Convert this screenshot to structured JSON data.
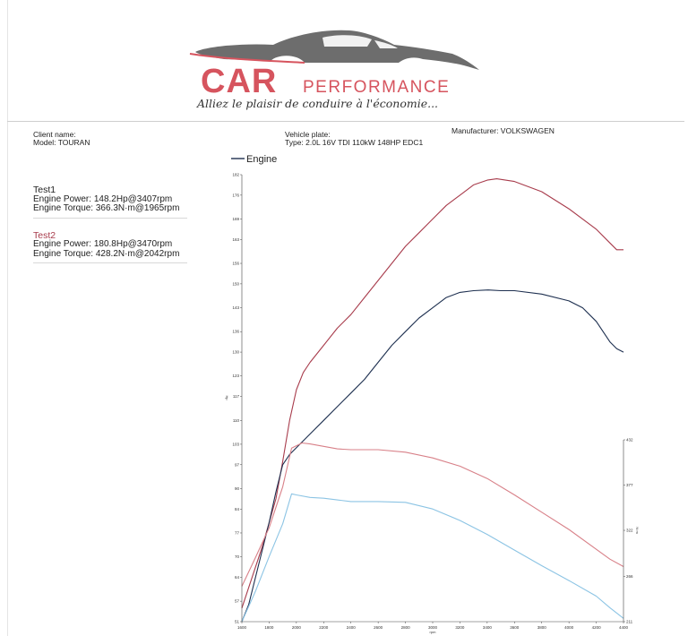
{
  "logo": {
    "brand": "CAR",
    "brand_sub": "PERFORMANCE",
    "slogan": "Alliez le plaisir de conduire à l'économie..."
  },
  "info": {
    "client_label": "Client name:",
    "model": "Model: TOURAN",
    "plate_label": "Vehicle plate:",
    "type": "Type: 2.0L 16V TDI 110kW 148HP EDC1",
    "manufacturer": "Manufacturer: VOLKSWAGEN"
  },
  "tests": [
    {
      "name": "Test1",
      "power": "Engine Power: 148.2Hp@3407rpm",
      "torque": "Engine Torque: 366.3N·m@1965rpm"
    },
    {
      "name": "Test2",
      "power": "Engine Power: 180.8Hp@3470rpm",
      "torque": "Engine Torque: 428.2N·m@2042rpm"
    }
  ],
  "colors": {
    "test1": "#1e3050",
    "test2": "#a83c4c",
    "test1_torque": "#8cc4e4",
    "test2_torque": "#d88088",
    "logo": "#d6545e"
  },
  "chart_data": {
    "type": "line",
    "legend": "Engine",
    "legend_position": "top-left",
    "xlabel": "rpm",
    "ylabel_left": "Hp",
    "ylabel_right": "N·m",
    "xlim": [
      1600,
      4400
    ],
    "x_ticks": [
      "1600",
      "1800",
      "2000",
      "2200",
      "2400",
      "2600",
      "2800",
      "3000",
      "3200",
      "3400",
      "3600",
      "3800",
      "4000",
      "4200",
      "4400"
    ],
    "ylim_left": [
      51,
      182
    ],
    "y_ticks_left": [
      "182",
      "176",
      "169",
      "163",
      "156",
      "150",
      "143",
      "136",
      "130",
      "123",
      "117",
      "110",
      "103",
      "97",
      "90",
      "84",
      "77",
      "70",
      "64",
      "57",
      "51"
    ],
    "ylim_right": [
      211,
      432
    ],
    "y_ticks_right": [
      "432",
      "377",
      "322",
      "266",
      "211"
    ],
    "series": [
      {
        "axis": "left",
        "color": "test2",
        "x": [
          1600,
          1650,
          1700,
          1750,
          1800,
          1850,
          1900,
          1950,
          2000,
          2050,
          2100,
          2200,
          2300,
          2400,
          2500,
          2600,
          2700,
          2800,
          2900,
          3000,
          3100,
          3200,
          3300,
          3400,
          3470,
          3600,
          3800,
          4000,
          4200,
          4300,
          4350,
          4400
        ],
        "y": [
          55,
          61,
          67,
          73,
          80,
          87,
          98,
          110,
          119,
          124,
          127,
          132,
          137,
          141,
          146,
          151,
          156,
          161,
          165,
          169,
          173,
          176,
          179,
          180.4,
          180.8,
          180,
          177,
          172,
          166,
          162,
          160,
          160
        ]
      },
      {
        "axis": "left",
        "color": "test1",
        "x": [
          1600,
          1650,
          1700,
          1750,
          1800,
          1850,
          1900,
          1950,
          2000,
          2050,
          2100,
          2200,
          2300,
          2400,
          2500,
          2600,
          2700,
          2800,
          2900,
          3000,
          3100,
          3200,
          3300,
          3407,
          3500,
          3600,
          3800,
          4000,
          4100,
          4200,
          4300,
          4350,
          4400
        ],
        "y": [
          51,
          56,
          64,
          72,
          80,
          89,
          97,
          100,
          102,
          104,
          106,
          110,
          114,
          118,
          122,
          127,
          132,
          136,
          140,
          143,
          146,
          147.5,
          148,
          148.2,
          148,
          148,
          147,
          145,
          143,
          139,
          133,
          131,
          130
        ]
      },
      {
        "axis": "right",
        "color": "test2_torque",
        "x": [
          1600,
          1700,
          1800,
          1900,
          1965,
          2042,
          2100,
          2200,
          2300,
          2400,
          2600,
          2800,
          3000,
          3200,
          3400,
          3600,
          3800,
          4000,
          4200,
          4300,
          4400
        ],
        "y": [
          254,
          289,
          325,
          375,
          422,
          428.2,
          427,
          424,
          421,
          420,
          420,
          417,
          410,
          400,
          385,
          365,
          344,
          323,
          299,
          287,
          278
        ]
      },
      {
        "axis": "right",
        "color": "test1_torque",
        "x": [
          1600,
          1700,
          1800,
          1900,
          1965,
          2000,
          2100,
          2200,
          2300,
          2400,
          2600,
          2800,
          3000,
          3200,
          3400,
          3600,
          3800,
          4000,
          4200,
          4300,
          4400
        ],
        "y": [
          211,
          248,
          290,
          330,
          366.3,
          365,
          362,
          361,
          359,
          357,
          357,
          356,
          348,
          334,
          317,
          298,
          279,
          261,
          242,
          228,
          215
        ]
      }
    ]
  }
}
